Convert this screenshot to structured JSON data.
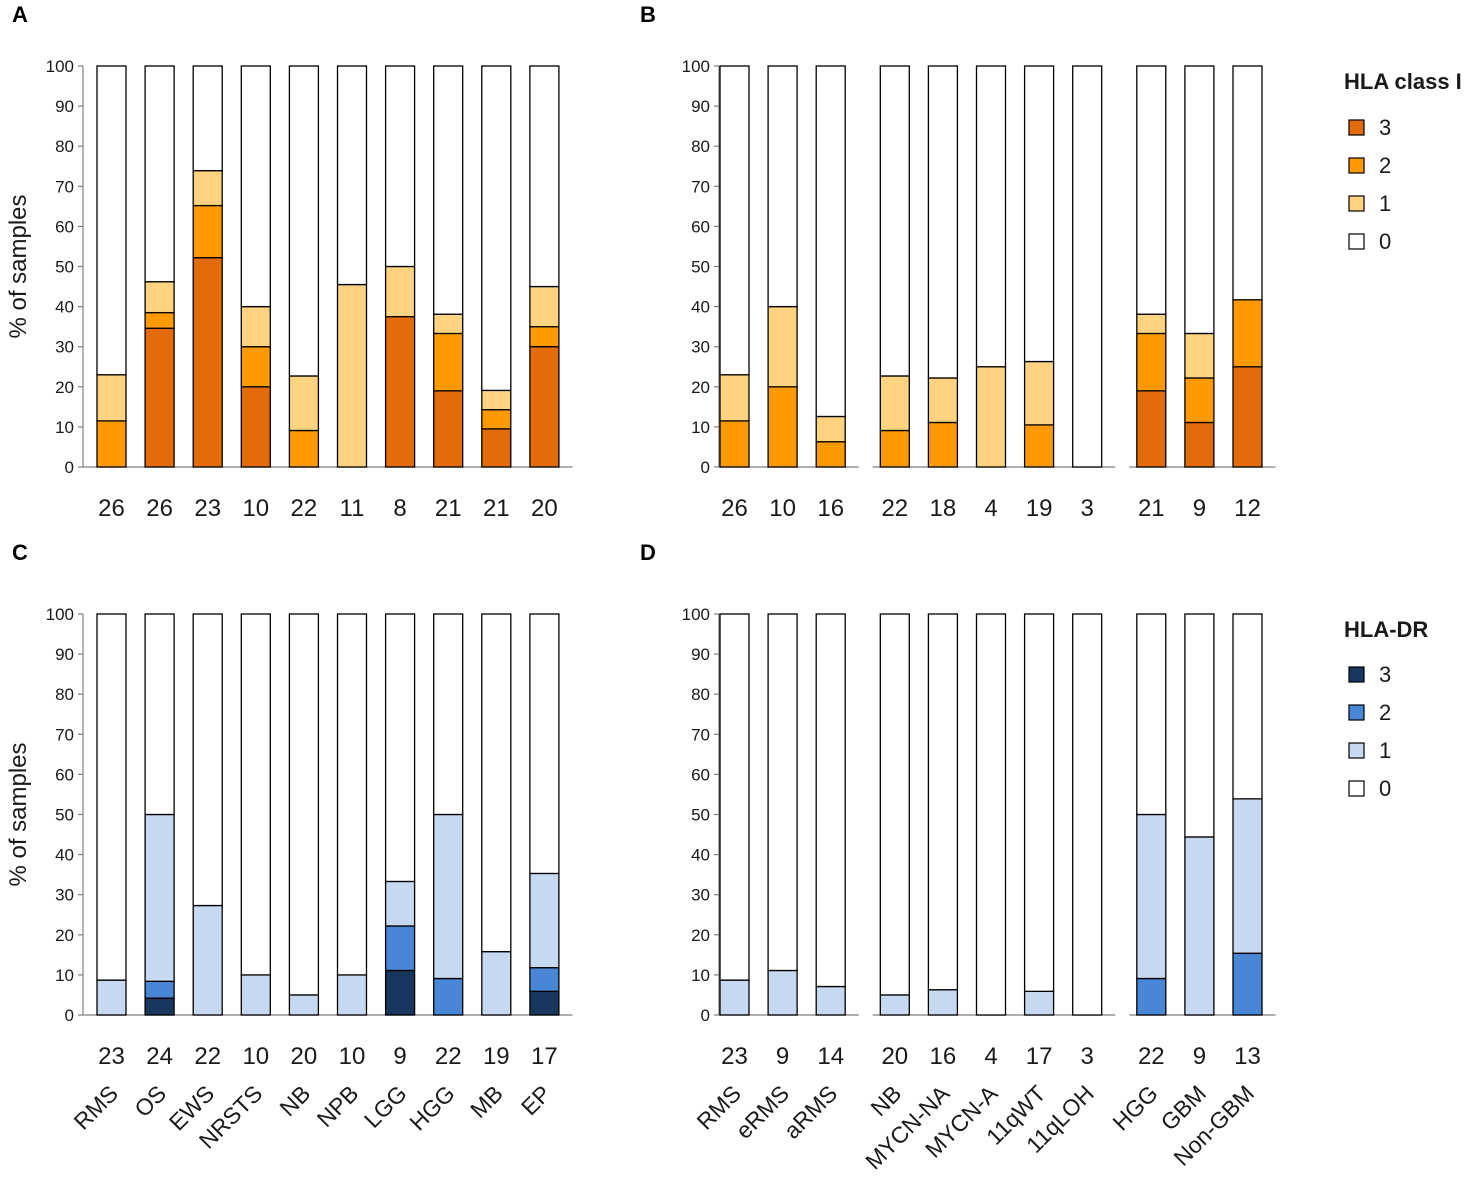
{
  "chart_data": [
    {
      "panel": "A",
      "type": "bar",
      "stacked": true,
      "ylabel": "% of samples",
      "ylim": [
        0,
        100
      ],
      "yticks": [
        0,
        10,
        20,
        30,
        40,
        50,
        60,
        70,
        80,
        90,
        100
      ],
      "categories": [
        "RMS",
        "OS",
        "EWS",
        "NRSTS",
        "NB",
        "NPB",
        "LGG",
        "HGG",
        "MB",
        "EP"
      ],
      "show_categories": false,
      "n": [
        "26",
        "26",
        "23",
        "10",
        "22",
        "11",
        "8",
        "21",
        "21",
        "20"
      ],
      "groups": [
        10
      ],
      "series": [
        {
          "name": "3",
          "color": "#E36C0A",
          "values": [
            0,
            34.6,
            52.2,
            20,
            0,
            0,
            37.5,
            19,
            9.5,
            30
          ]
        },
        {
          "name": "2",
          "color": "#FF9900",
          "values": [
            11.5,
            3.9,
            13,
            10,
            9.1,
            0,
            0,
            14.3,
            4.8,
            5
          ]
        },
        {
          "name": "1",
          "color": "#FFD37F",
          "values": [
            11.5,
            7.7,
            8.7,
            10,
            13.6,
            45.5,
            12.5,
            4.8,
            4.8,
            10
          ]
        },
        {
          "name": "0",
          "color": "#FFFFFF",
          "values": [
            77,
            53.8,
            26.1,
            60,
            77.3,
            54.5,
            50,
            61.9,
            80.9,
            55
          ]
        }
      ]
    },
    {
      "panel": "B",
      "type": "bar",
      "stacked": true,
      "ylim": [
        0,
        100
      ],
      "yticks": [
        0,
        10,
        20,
        30,
        40,
        50,
        60,
        70,
        80,
        90,
        100
      ],
      "categories": [
        "RMS",
        "eRMS",
        "aRMS",
        "NB",
        "MYCN-NA",
        "MYCN-A",
        "11qWT",
        "11qLOH",
        "HGG",
        "GBM",
        "Non-GBM"
      ],
      "show_categories": false,
      "n": [
        "26",
        "10",
        "16",
        "22",
        "18",
        "4",
        "19",
        "3",
        "21",
        "9",
        "12"
      ],
      "groups": [
        3,
        5,
        3
      ],
      "series": [
        {
          "name": "3",
          "color": "#E36C0A",
          "values": [
            0,
            0,
            0,
            0,
            0,
            0,
            0,
            0,
            19,
            11.1,
            25
          ]
        },
        {
          "name": "2",
          "color": "#FF9900",
          "values": [
            11.5,
            20,
            6.3,
            9.1,
            11.1,
            0,
            10.5,
            0,
            14.3,
            11.1,
            16.7
          ]
        },
        {
          "name": "1",
          "color": "#FFD37F",
          "values": [
            11.5,
            20,
            6.3,
            13.6,
            11.1,
            25,
            15.8,
            0,
            4.8,
            11.1,
            0
          ]
        },
        {
          "name": "0",
          "color": "#FFFFFF",
          "values": [
            77,
            60,
            87.4,
            77.3,
            77.8,
            75,
            73.7,
            100,
            61.9,
            66.7,
            58.3
          ]
        }
      ]
    },
    {
      "panel": "C",
      "type": "bar",
      "stacked": true,
      "ylabel": "% of samples",
      "ylim": [
        0,
        100
      ],
      "yticks": [
        0,
        10,
        20,
        30,
        40,
        50,
        60,
        70,
        80,
        90,
        100
      ],
      "categories": [
        "RMS",
        "OS",
        "EWS",
        "NRSTS",
        "NB",
        "NPB",
        "LGG",
        "HGG",
        "MB",
        "EP"
      ],
      "show_categories": true,
      "n": [
        "23",
        "24",
        "22",
        "10",
        "20",
        "10",
        "9",
        "22",
        "19",
        "17"
      ],
      "groups": [
        10
      ],
      "series": [
        {
          "name": "3",
          "color": "#17375E",
          "values": [
            0,
            4.2,
            0,
            0,
            0,
            0,
            11.1,
            0,
            0,
            5.9
          ]
        },
        {
          "name": "2",
          "color": "#4A86D6",
          "values": [
            0,
            4.2,
            0,
            0,
            0,
            0,
            11.1,
            9.1,
            0,
            5.9
          ]
        },
        {
          "name": "1",
          "color": "#C6D9F1",
          "values": [
            8.7,
            41.6,
            27.3,
            10,
            5,
            10,
            11.1,
            40.9,
            15.8,
            23.5
          ]
        },
        {
          "name": "0",
          "color": "#FFFFFF",
          "values": [
            91.3,
            50,
            72.7,
            90,
            95,
            90,
            66.7,
            50,
            84.2,
            64.7
          ]
        }
      ]
    },
    {
      "panel": "D",
      "type": "bar",
      "stacked": true,
      "ylim": [
        0,
        100
      ],
      "yticks": [
        0,
        10,
        20,
        30,
        40,
        50,
        60,
        70,
        80,
        90,
        100
      ],
      "categories": [
        "RMS",
        "eRMS",
        "aRMS",
        "NB",
        "MYCN-NA",
        "MYCN-A",
        "11qWT",
        "11qLOH",
        "HGG",
        "GBM",
        "Non-GBM"
      ],
      "show_categories": true,
      "n": [
        "23",
        "9",
        "14",
        "20",
        "16",
        "4",
        "17",
        "3",
        "22",
        "9",
        "13"
      ],
      "groups": [
        3,
        5,
        3
      ],
      "series": [
        {
          "name": "3",
          "color": "#17375E",
          "values": [
            0,
            0,
            0,
            0,
            0,
            0,
            0,
            0,
            0,
            0,
            0
          ]
        },
        {
          "name": "2",
          "color": "#4A86D6",
          "values": [
            0,
            0,
            0,
            0,
            0,
            0,
            0,
            0,
            9.1,
            0,
            15.4
          ]
        },
        {
          "name": "1",
          "color": "#C6D9F1",
          "values": [
            8.7,
            11.1,
            7.1,
            5,
            6.3,
            0,
            5.9,
            0,
            40.9,
            44.4,
            38.5
          ]
        },
        {
          "name": "0",
          "color": "#FFFFFF",
          "values": [
            91.3,
            88.9,
            92.9,
            95,
            93.7,
            100,
            94.1,
            100,
            50,
            55.6,
            46.1
          ]
        }
      ]
    }
  ],
  "legends": [
    {
      "title": "HLA class I",
      "items": [
        {
          "label": "3",
          "color": "#E36C0A"
        },
        {
          "label": "2",
          "color": "#FF9900"
        },
        {
          "label": "1",
          "color": "#FFD37F"
        },
        {
          "label": "0",
          "color": "#FFFFFF"
        }
      ]
    },
    {
      "title": "HLA-DR",
      "items": [
        {
          "label": "3",
          "color": "#17375E"
        },
        {
          "label": "2",
          "color": "#4A86D6"
        },
        {
          "label": "1",
          "color": "#C6D9F1"
        },
        {
          "label": "0",
          "color": "#FFFFFF"
        }
      ]
    }
  ]
}
